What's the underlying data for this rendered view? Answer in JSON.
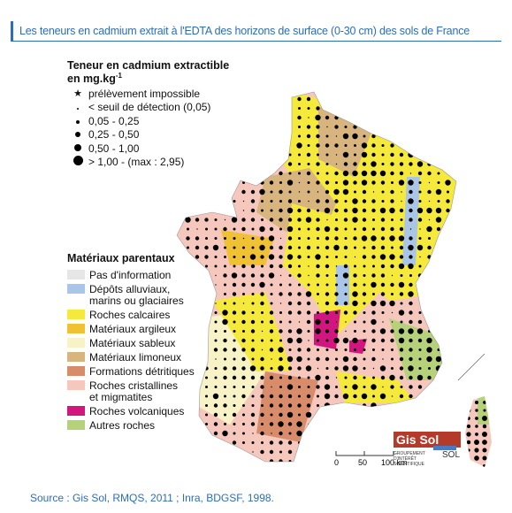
{
  "header": {
    "title": "Les teneurs en cadmium extrait à l'EDTA des horizons de surface (0-30 cm) des sols de France"
  },
  "legend_cadmium": {
    "title": "Teneur en cadmium extractible",
    "unit": "en mg.kg",
    "unit_sup": "-1",
    "items": [
      "prélèvement impossible",
      "< seuil de détection (0,05)",
      "0,05 -  0,25",
      "0,25 - 0,50",
      "0,50 - 1,00",
      "> 1,00 - (max : 2,95)"
    ]
  },
  "legend_materials": {
    "title": "Matériaux parentaux",
    "items": [
      {
        "label": "Pas d'information",
        "color": "#e6e6e6"
      },
      {
        "label": "Dépôts alluviaux,\nmarins ou glaciaires",
        "color": "#a9c6e8"
      },
      {
        "label": "Roches calcaires",
        "color": "#f5e93c"
      },
      {
        "label": "Matériaux argileux",
        "color": "#f1c134"
      },
      {
        "label": "Matériaux sableux",
        "color": "#f8f3c6"
      },
      {
        "label": "Matériaux limoneux",
        "color": "#d8b47e"
      },
      {
        "label": "Formations détritiques",
        "color": "#d98c6a"
      },
      {
        "label": "Roches cristallines\net migmatites",
        "color": "#f6c7bd"
      },
      {
        "label": "Roches volcaniques",
        "color": "#d3167f"
      },
      {
        "label": "Autres roches",
        "color": "#b5d17a"
      }
    ]
  },
  "scale_bar": {
    "labels": [
      "0",
      "50",
      "100 km"
    ]
  },
  "logo": {
    "text": "Gis Sol",
    "subtitle": "GROUPEMENT D'INTÉRÊT SCIENTIFIQUE",
    "sol": "SOL"
  },
  "footer": {
    "source": "Source : Gis Sol, RMQS, 2011 ; Inra, BDGSF, 1998."
  }
}
